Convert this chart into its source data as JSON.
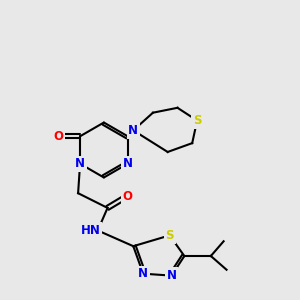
{
  "background_color": "#e8e8e8",
  "atom_colors": {
    "N": "#0000ee",
    "O": "#ff0000",
    "S": "#cccc00",
    "C": "#111111",
    "H": "#008080"
  },
  "figsize": [
    3.0,
    3.0
  ],
  "dpi": 100
}
